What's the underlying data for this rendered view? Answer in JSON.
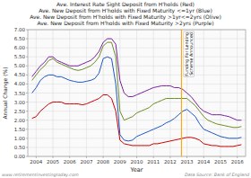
{
  "chart_data": {
    "type": "line",
    "title": "Ave. Interest Rate Sight Deposit from H'holds (Red)\nAve. New Deposit from H'holds with Fixed Maturity <=1yr (Blue)\nAve. New Deposit from H'holds with Fixed Maturity >1yr<=2yrs (Olive)\nAve. New Deposit from H'holds with Fixed Maturity >2yrs (Purple)",
    "x_label": "Year",
    "y_label": "Annual Change (%)",
    "x": [
      2003.75,
      2004.0,
      2004.25,
      2004.5,
      2004.75,
      2005.0,
      2005.25,
      2005.5,
      2005.75,
      2006.0,
      2006.25,
      2006.5,
      2006.75,
      2007.0,
      2007.25,
      2007.5,
      2007.75,
      2008.0,
      2008.25,
      2008.5,
      2008.75,
      2009.0,
      2009.25,
      2009.5,
      2009.75,
      2010.0,
      2010.25,
      2010.5,
      2010.75,
      2011.0,
      2011.25,
      2011.5,
      2011.75,
      2012.0,
      2012.25,
      2012.5,
      2012.75,
      2013.0,
      2013.25,
      2013.5,
      2013.75,
      2014.0,
      2014.25,
      2014.5,
      2014.75,
      2015.0,
      2015.25,
      2015.5,
      2015.75,
      2016.0,
      2016.25
    ],
    "series": [
      {
        "color": "#cc0000",
        "values": [
          2.1,
          2.2,
          2.5,
          2.7,
          2.9,
          3.0,
          3.0,
          3.0,
          2.9,
          2.9,
          2.9,
          2.9,
          2.85,
          2.9,
          3.0,
          3.1,
          3.2,
          3.4,
          3.4,
          3.2,
          2.5,
          0.9,
          0.7,
          0.65,
          0.6,
          0.6,
          0.6,
          0.6,
          0.6,
          0.7,
          0.7,
          0.75,
          0.8,
          0.85,
          0.9,
          0.95,
          1.0,
          1.05,
          1.05,
          1.0,
          0.9,
          0.7,
          0.65,
          0.6,
          0.6,
          0.55,
          0.55,
          0.55,
          0.55,
          0.6,
          0.65
        ]
      },
      {
        "color": "#1e56c8",
        "values": [
          3.5,
          3.8,
          4.2,
          4.4,
          4.5,
          4.5,
          4.4,
          4.4,
          4.3,
          4.2,
          4.15,
          4.1,
          4.1,
          4.15,
          4.2,
          4.3,
          4.6,
          5.4,
          5.5,
          5.4,
          4.0,
          1.2,
          0.9,
          0.85,
          0.9,
          1.1,
          1.2,
          1.3,
          1.4,
          1.5,
          1.6,
          1.7,
          1.85,
          1.95,
          2.1,
          2.3,
          2.5,
          2.6,
          2.4,
          2.2,
          1.8,
          1.5,
          1.4,
          1.3,
          1.2,
          1.1,
          1.05,
          1.0,
          1.0,
          1.0,
          1.05
        ]
      },
      {
        "color": "#6b8e23",
        "values": [
          4.2,
          4.5,
          4.8,
          5.0,
          5.3,
          5.4,
          5.2,
          5.1,
          5.0,
          4.9,
          4.8,
          4.75,
          4.8,
          4.9,
          5.0,
          5.2,
          5.5,
          6.1,
          6.3,
          6.3,
          5.5,
          2.5,
          2.0,
          2.1,
          2.2,
          2.4,
          2.5,
          2.6,
          2.7,
          2.9,
          3.0,
          3.1,
          3.2,
          3.2,
          3.2,
          3.2,
          3.2,
          3.2,
          3.0,
          2.8,
          2.5,
          2.2,
          2.0,
          1.9,
          1.8,
          1.75,
          1.7,
          1.65,
          1.6,
          1.6,
          1.65
        ]
      },
      {
        "color": "#7b1fa2",
        "values": [
          4.4,
          4.7,
          5.0,
          5.2,
          5.5,
          5.5,
          5.3,
          5.2,
          5.1,
          5.0,
          5.0,
          5.0,
          5.1,
          5.2,
          5.3,
          5.5,
          5.8,
          6.3,
          6.5,
          6.5,
          6.2,
          4.2,
          3.5,
          3.3,
          3.3,
          3.4,
          3.5,
          3.6,
          3.7,
          3.8,
          3.85,
          3.9,
          3.9,
          3.9,
          3.8,
          3.8,
          3.7,
          3.5,
          3.3,
          3.0,
          2.7,
          2.5,
          2.4,
          2.3,
          2.3,
          2.3,
          2.25,
          2.2,
          2.1,
          2.0,
          2.0
        ]
      }
    ],
    "xlim": [
      2003.5,
      2016.5
    ],
    "xticks": [
      2004,
      2005,
      2006,
      2007,
      2008,
      2009,
      2010,
      2011,
      2012,
      2013,
      2014,
      2015,
      2016
    ],
    "ylim": [
      0.0,
      7.0
    ],
    "yticks": [
      {
        "value": 0.0,
        "label": "0.00"
      },
      {
        "value": 0.5,
        "label": "0.50"
      },
      {
        "value": 1.0,
        "label": "1.00"
      },
      {
        "value": 1.5,
        "label": "1.50"
      },
      {
        "value": 2.0,
        "label": "2.00"
      },
      {
        "value": 2.5,
        "label": "2.50"
      },
      {
        "value": 3.0,
        "label": "3.00"
      },
      {
        "value": 3.5,
        "label": "3.50"
      },
      {
        "value": 4.0,
        "label": "4.00"
      },
      {
        "value": 4.5,
        "label": "4.50"
      },
      {
        "value": 5.0,
        "label": "5.00"
      },
      {
        "value": 5.5,
        "label": "5.50"
      },
      {
        "value": 6.0,
        "label": "6.00"
      },
      {
        "value": 6.5,
        "label": "6.50"
      },
      {
        "value": 7.0,
        "label": "7.00"
      }
    ],
    "grid": true,
    "annotations": [
      {
        "x": 2012.67,
        "color": "#FFA500",
        "text": "Funding For Lending\nScheme Announced"
      },
      {
        "text": "www.retirementinvestingtoday.com"
      },
      {
        "text": "Data Source: Bank of England"
      }
    ]
  }
}
